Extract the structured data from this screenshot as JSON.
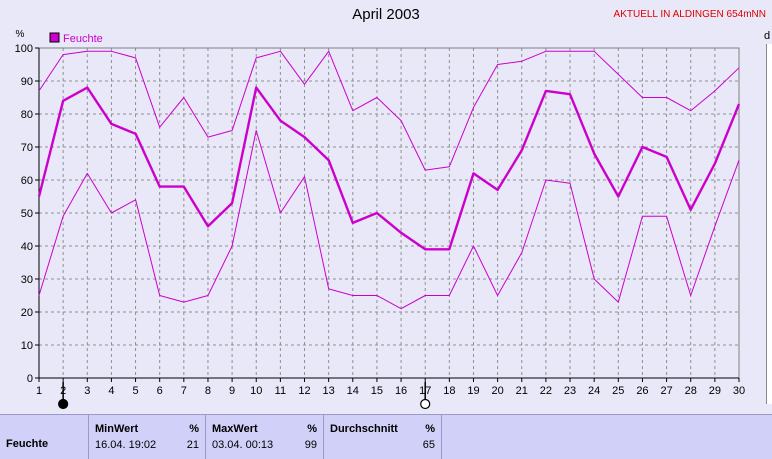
{
  "window": {
    "title": "April 2003",
    "location": "AKTUELL IN ALDINGEN 654mNN",
    "edge_label": "d"
  },
  "colors": {
    "series": "#cc00cc",
    "grid": "#909090",
    "plot_bg": "#e8e8f8",
    "table_bg": "#d0d0f8"
  },
  "chart_data": {
    "type": "line",
    "title": "April 2003",
    "ylabel": "%",
    "legend": "top-left",
    "grid": true,
    "ylim": [
      0,
      100
    ],
    "xlim": [
      1,
      30
    ],
    "x": [
      1,
      2,
      3,
      4,
      5,
      6,
      7,
      8,
      9,
      10,
      11,
      12,
      13,
      14,
      15,
      16,
      17,
      18,
      19,
      20,
      21,
      22,
      23,
      24,
      25,
      26,
      27,
      28,
      29,
      30
    ],
    "yticks": [
      0,
      10,
      20,
      30,
      40,
      50,
      60,
      70,
      80,
      90,
      100
    ],
    "xtick_labels": [
      "1",
      "2",
      "3",
      "4",
      "5",
      "6",
      "7",
      "8",
      "9",
      "10",
      "11",
      "12",
      "13",
      "14",
      "15",
      "16",
      "17",
      "18",
      "19",
      "20",
      "21",
      "22",
      "23",
      "24",
      "25",
      "26",
      "27",
      "28",
      "29",
      "30"
    ],
    "series": [
      {
        "name": "Feuchte",
        "role": "mean",
        "values": [
          55,
          84,
          88,
          77,
          74,
          58,
          58,
          46,
          53,
          88,
          78,
          73,
          66,
          47,
          50,
          44,
          39,
          39,
          62,
          57,
          69,
          87,
          86,
          68,
          55,
          70,
          67,
          51,
          65,
          83
        ]
      },
      {
        "role": "max",
        "values": [
          87,
          98,
          99,
          99,
          97,
          76,
          85,
          73,
          75,
          97,
          99,
          89,
          99,
          81,
          85,
          78,
          63,
          64,
          82,
          95,
          96,
          99,
          99,
          99,
          92,
          85,
          85,
          81,
          87,
          94
        ]
      },
      {
        "role": "min",
        "values": [
          25,
          49,
          62,
          50,
          54,
          25,
          23,
          25,
          40,
          75,
          50,
          61,
          27,
          25,
          25,
          21,
          25,
          25,
          40,
          25,
          38,
          60,
          59,
          30,
          23,
          49,
          49,
          25,
          46,
          66
        ]
      }
    ],
    "moon_phases": [
      {
        "x": 2,
        "phase": "new"
      },
      {
        "x": 17,
        "phase": "full"
      }
    ]
  },
  "table": {
    "row_label": "Feuchte",
    "min": {
      "header": "MinWert",
      "unit": "%",
      "datetime": "16.04.  19:02",
      "value": "21"
    },
    "max": {
      "header": "MaxWert",
      "unit": "%",
      "datetime": "03.04.  00:13",
      "value": "99"
    },
    "avg": {
      "header": "Durchschnitt",
      "unit": "%",
      "value": "65"
    }
  }
}
